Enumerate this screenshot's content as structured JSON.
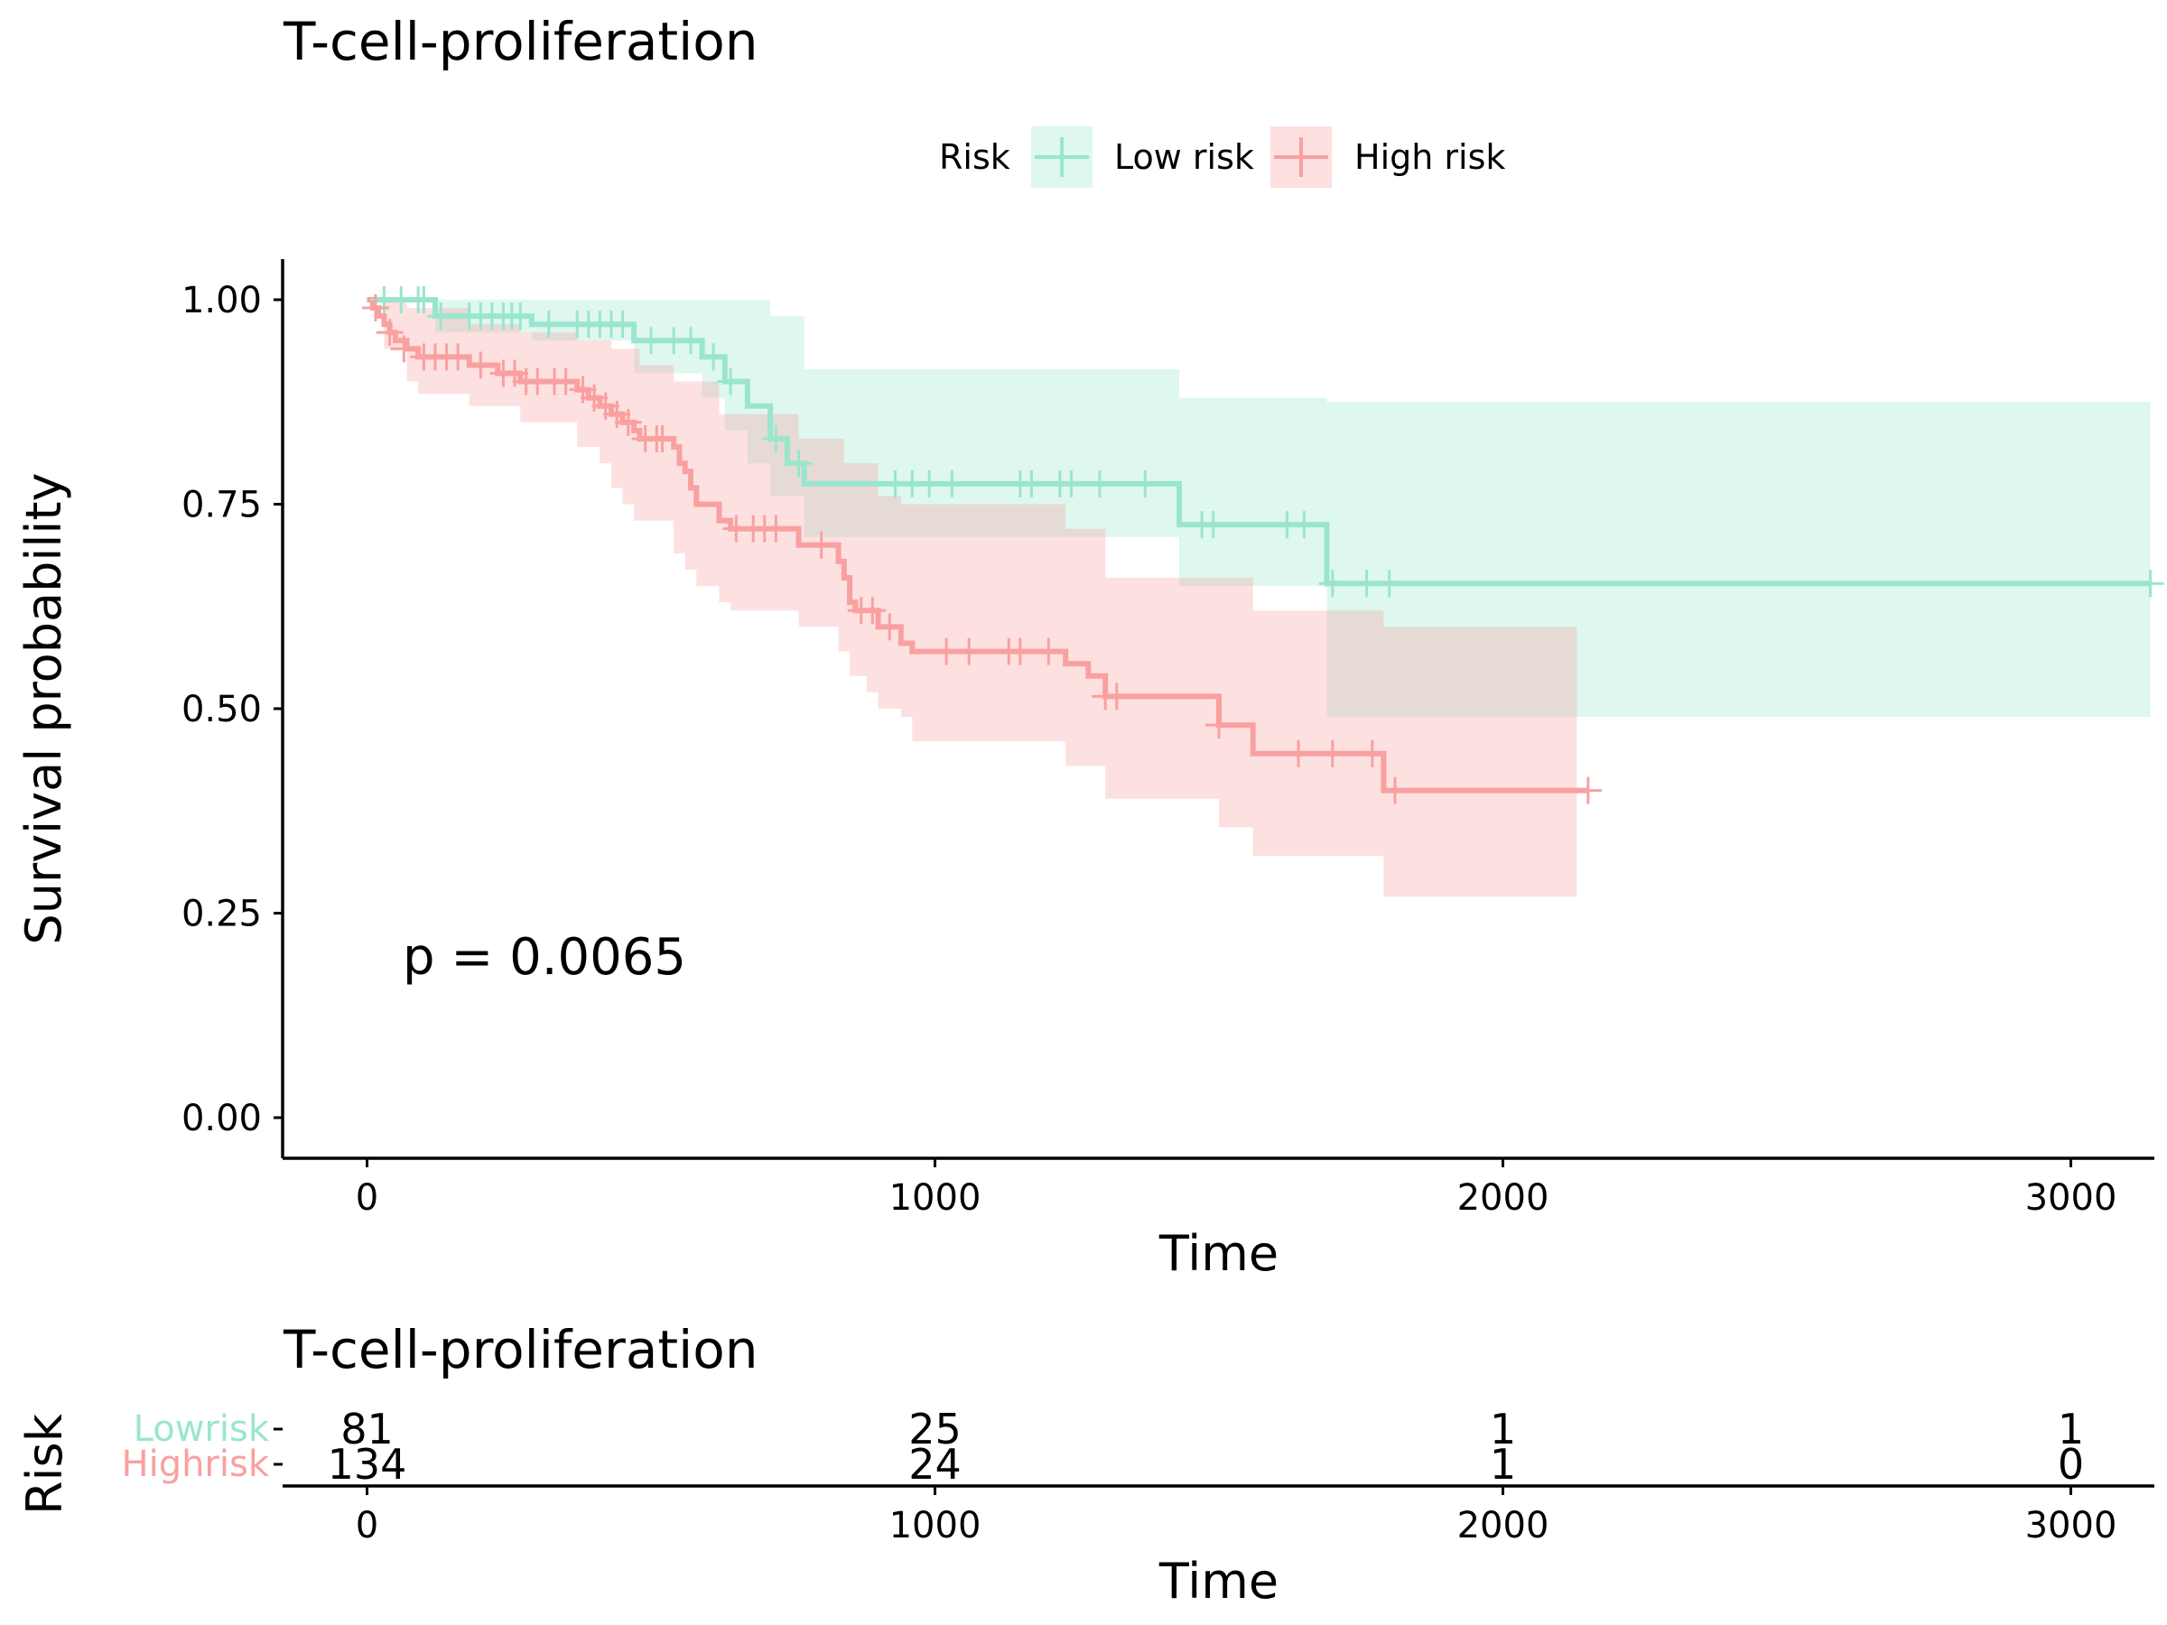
{
  "colors": {
    "low": "#99E6CC",
    "high": "#F9A0A0",
    "axis": "#000000"
  },
  "chart_data": {
    "type": "line",
    "title": "T-cell-proliferation",
    "xlabel": "Time",
    "ylabel": "Survival probability",
    "xlim": [
      -150,
      3140
    ],
    "ylim": [
      -0.05,
      1.05
    ],
    "xticks": [
      0,
      1000,
      2000,
      3000
    ],
    "xtick_labels": [
      "0",
      "1000",
      "2000",
      "3000"
    ],
    "yticks": [
      0,
      0.25,
      0.5,
      0.75,
      1
    ],
    "ytick_labels": [
      "0.00",
      "0.25",
      "0.50",
      "0.75",
      "1.00"
    ],
    "legend": {
      "title": "Risk",
      "position": "top"
    },
    "annotation": "p = 0.0065",
    "series": [
      {
        "name": "Low risk",
        "key": "low",
        "steps": [
          [
            0,
            1.0
          ],
          [
            120,
            0.98
          ],
          [
            290,
            0.97
          ],
          [
            470,
            0.95
          ],
          [
            590,
            0.93
          ],
          [
            630,
            0.9
          ],
          [
            670,
            0.87
          ],
          [
            710,
            0.83
          ],
          [
            740,
            0.8
          ],
          [
            770,
            0.775
          ],
          [
            1430,
            0.725
          ],
          [
            1690,
            0.653
          ],
          [
            3140,
            0.653
          ]
        ],
        "lower": [
          [
            0,
            1.0
          ],
          [
            120,
            0.96
          ],
          [
            290,
            0.95
          ],
          [
            470,
            0.91
          ],
          [
            590,
            0.88
          ],
          [
            630,
            0.84
          ],
          [
            670,
            0.8
          ],
          [
            710,
            0.76
          ],
          [
            770,
            0.71
          ],
          [
            1430,
            0.65
          ],
          [
            1690,
            0.49
          ],
          [
            3140,
            0.49
          ]
        ],
        "upper": [
          [
            0,
            1.0
          ],
          [
            470,
            1.0
          ],
          [
            710,
            0.98
          ],
          [
            770,
            0.915
          ],
          [
            1430,
            0.88
          ],
          [
            1690,
            0.875
          ],
          [
            3140,
            0.875
          ]
        ],
        "censor": [
          [
            30,
            1.0
          ],
          [
            60,
            1.0
          ],
          [
            90,
            1.0
          ],
          [
            100,
            1.0
          ],
          [
            130,
            0.98
          ],
          [
            180,
            0.98
          ],
          [
            200,
            0.98
          ],
          [
            220,
            0.98
          ],
          [
            240,
            0.98
          ],
          [
            255,
            0.98
          ],
          [
            270,
            0.98
          ],
          [
            320,
            0.97
          ],
          [
            370,
            0.97
          ],
          [
            390,
            0.97
          ],
          [
            410,
            0.97
          ],
          [
            430,
            0.97
          ],
          [
            450,
            0.97
          ],
          [
            500,
            0.95
          ],
          [
            540,
            0.95
          ],
          [
            570,
            0.95
          ],
          [
            610,
            0.93
          ],
          [
            640,
            0.9
          ],
          [
            720,
            0.83
          ],
          [
            760,
            0.8
          ],
          [
            930,
            0.775
          ],
          [
            960,
            0.775
          ],
          [
            990,
            0.775
          ],
          [
            1030,
            0.775
          ],
          [
            1150,
            0.775
          ],
          [
            1170,
            0.775
          ],
          [
            1220,
            0.775
          ],
          [
            1240,
            0.775
          ],
          [
            1290,
            0.775
          ],
          [
            1370,
            0.775
          ],
          [
            1470,
            0.725
          ],
          [
            1490,
            0.725
          ],
          [
            1620,
            0.725
          ],
          [
            1650,
            0.725
          ],
          [
            1700,
            0.653
          ],
          [
            1760,
            0.653
          ],
          [
            1800,
            0.653
          ],
          [
            3140,
            0.653
          ]
        ]
      },
      {
        "name": "High risk",
        "key": "high",
        "steps": [
          [
            0,
            1.0
          ],
          [
            10,
            0.99
          ],
          [
            20,
            0.98
          ],
          [
            30,
            0.97
          ],
          [
            40,
            0.96
          ],
          [
            50,
            0.95
          ],
          [
            70,
            0.94
          ],
          [
            90,
            0.93
          ],
          [
            180,
            0.92
          ],
          [
            230,
            0.91
          ],
          [
            270,
            0.9
          ],
          [
            370,
            0.89
          ],
          [
            390,
            0.88
          ],
          [
            410,
            0.87
          ],
          [
            430,
            0.86
          ],
          [
            450,
            0.85
          ],
          [
            470,
            0.84
          ],
          [
            480,
            0.83
          ],
          [
            540,
            0.82
          ],
          [
            550,
            0.8
          ],
          [
            560,
            0.79
          ],
          [
            570,
            0.77
          ],
          [
            580,
            0.75
          ],
          [
            620,
            0.73
          ],
          [
            640,
            0.72
          ],
          [
            760,
            0.7
          ],
          [
            830,
            0.68
          ],
          [
            840,
            0.66
          ],
          [
            850,
            0.63
          ],
          [
            860,
            0.62
          ],
          [
            900,
            0.6
          ],
          [
            940,
            0.58
          ],
          [
            960,
            0.57
          ],
          [
            1230,
            0.555
          ],
          [
            1270,
            0.54
          ],
          [
            1300,
            0.515
          ],
          [
            1500,
            0.48
          ],
          [
            1560,
            0.445
          ],
          [
            1790,
            0.4
          ],
          [
            2150,
            0.4
          ]
        ],
        "lower": [
          [
            0,
            1.0
          ],
          [
            30,
            0.94
          ],
          [
            70,
            0.9
          ],
          [
            90,
            0.885
          ],
          [
            180,
            0.87
          ],
          [
            270,
            0.85
          ],
          [
            370,
            0.82
          ],
          [
            410,
            0.8
          ],
          [
            430,
            0.77
          ],
          [
            450,
            0.75
          ],
          [
            470,
            0.73
          ],
          [
            540,
            0.69
          ],
          [
            560,
            0.67
          ],
          [
            580,
            0.65
          ],
          [
            620,
            0.63
          ],
          [
            640,
            0.62
          ],
          [
            760,
            0.6
          ],
          [
            830,
            0.57
          ],
          [
            850,
            0.54
          ],
          [
            880,
            0.52
          ],
          [
            900,
            0.5
          ],
          [
            940,
            0.49
          ],
          [
            960,
            0.46
          ],
          [
            1230,
            0.43
          ],
          [
            1300,
            0.39
          ],
          [
            1500,
            0.355
          ],
          [
            1560,
            0.32
          ],
          [
            1790,
            0.27
          ],
          [
            2130,
            0.27
          ]
        ],
        "upper": [
          [
            0,
            1.0
          ],
          [
            70,
            0.99
          ],
          [
            180,
            0.97
          ],
          [
            270,
            0.96
          ],
          [
            370,
            0.95
          ],
          [
            430,
            0.94
          ],
          [
            480,
            0.92
          ],
          [
            540,
            0.9
          ],
          [
            620,
            0.86
          ],
          [
            760,
            0.83
          ],
          [
            840,
            0.8
          ],
          [
            900,
            0.76
          ],
          [
            940,
            0.75
          ],
          [
            1230,
            0.72
          ],
          [
            1300,
            0.66
          ],
          [
            1560,
            0.62
          ],
          [
            1790,
            0.6
          ],
          [
            2130,
            0.6
          ]
        ],
        "censor": [
          [
            15,
            0.99
          ],
          [
            40,
            0.96
          ],
          [
            65,
            0.94
          ],
          [
            100,
            0.93
          ],
          [
            120,
            0.93
          ],
          [
            140,
            0.93
          ],
          [
            160,
            0.93
          ],
          [
            200,
            0.92
          ],
          [
            240,
            0.91
          ],
          [
            260,
            0.91
          ],
          [
            280,
            0.9
          ],
          [
            300,
            0.9
          ],
          [
            330,
            0.9
          ],
          [
            350,
            0.9
          ],
          [
            380,
            0.89
          ],
          [
            400,
            0.88
          ],
          [
            420,
            0.87
          ],
          [
            440,
            0.86
          ],
          [
            460,
            0.85
          ],
          [
            490,
            0.83
          ],
          [
            510,
            0.83
          ],
          [
            520,
            0.83
          ],
          [
            650,
            0.72
          ],
          [
            680,
            0.72
          ],
          [
            700,
            0.72
          ],
          [
            720,
            0.72
          ],
          [
            800,
            0.7
          ],
          [
            870,
            0.62
          ],
          [
            890,
            0.62
          ],
          [
            920,
            0.6
          ],
          [
            1020,
            0.57
          ],
          [
            1060,
            0.57
          ],
          [
            1130,
            0.57
          ],
          [
            1150,
            0.57
          ],
          [
            1200,
            0.57
          ],
          [
            1300,
            0.515
          ],
          [
            1320,
            0.515
          ],
          [
            1500,
            0.48
          ],
          [
            1640,
            0.445
          ],
          [
            1700,
            0.445
          ],
          [
            1770,
            0.445
          ],
          [
            1810,
            0.4
          ],
          [
            2150,
            0.4
          ]
        ]
      }
    ]
  },
  "risk_table": {
    "title": "T-cell-proliferation",
    "ylabel": "Risk",
    "xlabel": "Time",
    "xticks": [
      0,
      1000,
      2000,
      3000
    ],
    "xtick_labels": [
      "0",
      "1000",
      "2000",
      "3000"
    ],
    "rows": [
      {
        "label": "Lowrisk",
        "key": "low",
        "values": [
          "81",
          "25",
          "1",
          "1"
        ]
      },
      {
        "label": "Highrisk",
        "key": "high",
        "values": [
          "134",
          "24",
          "1",
          "0"
        ]
      }
    ]
  }
}
